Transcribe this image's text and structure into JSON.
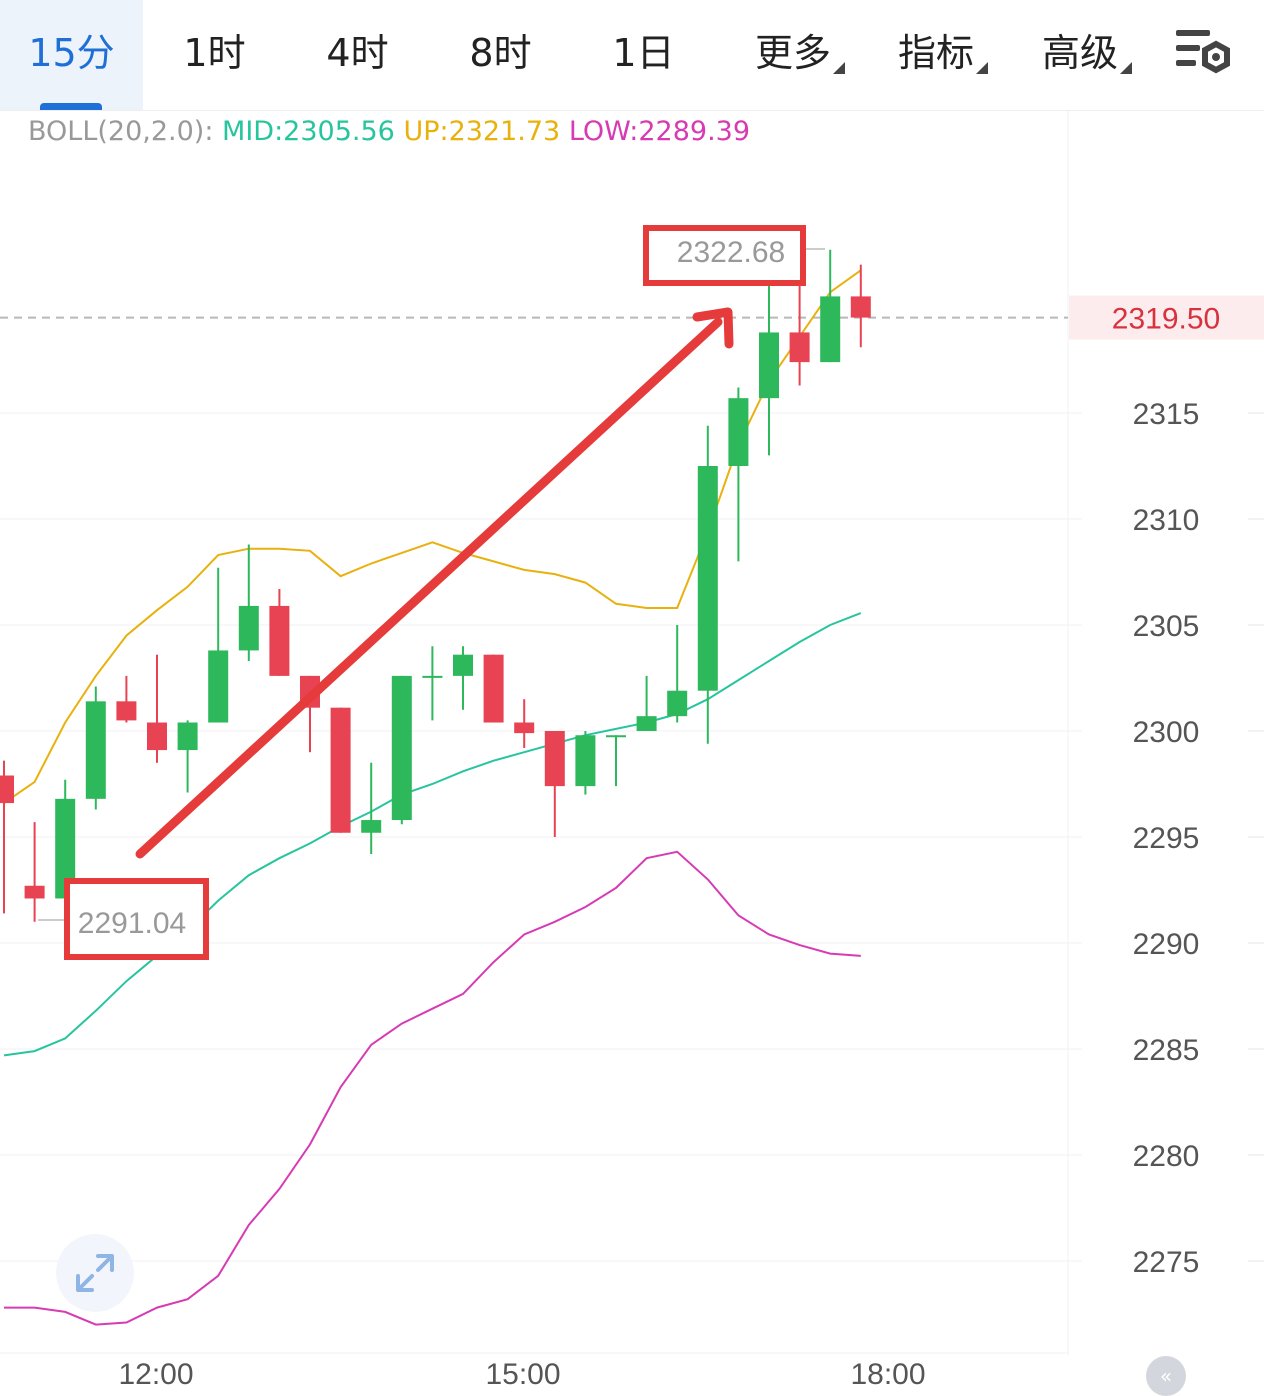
{
  "tabs": [
    {
      "label": "15分",
      "active": true,
      "dropdown": false
    },
    {
      "label": "1时",
      "active": false,
      "dropdown": false
    },
    {
      "label": "4时",
      "active": false,
      "dropdown": false
    },
    {
      "label": "8时",
      "active": false,
      "dropdown": false
    },
    {
      "label": "1日",
      "active": false,
      "dropdown": false
    },
    {
      "label": "更多",
      "active": false,
      "dropdown": true
    },
    {
      "label": "指标",
      "active": false,
      "dropdown": true
    },
    {
      "label": "高级",
      "active": false,
      "dropdown": true
    }
  ],
  "settings_icon": "chart-settings-icon",
  "legend": {
    "name": "BOLL(20,2.0):",
    "mid": "MID:2305.56",
    "up": "UP:2321.73",
    "low": "LOW:2289.39"
  },
  "colors": {
    "accent": "#1f6fd6",
    "up_candle": "#2eb85c",
    "down_candle": "#e84352",
    "mid_band": "#27c59e",
    "upper_band": "#e8b10d",
    "lower_band": "#d73bb3",
    "annotation": "#e63b3b"
  },
  "chart_data": {
    "type": "candlestick",
    "indicator": "BOLL(20,2.0)",
    "x_ticks": [
      "12:00",
      "15:00",
      "18:00"
    ],
    "y_ticks": [
      2315,
      2310,
      2305,
      2300,
      2295,
      2290,
      2285,
      2280,
      2275
    ],
    "ylim": [
      2272.5,
      2326
    ],
    "current_price": 2319.5,
    "current_price_label": "2319.50",
    "annotations": {
      "high_label": "2322.68",
      "low_label": "2291.04",
      "arrow": "up"
    },
    "candles": [
      {
        "o": 2297.9,
        "h": 2298.6,
        "l": 2291.4,
        "c": 2296.6
      },
      {
        "o": 2292.7,
        "h": 2295.7,
        "l": 2291.0,
        "c": 2292.1
      },
      {
        "o": 2292.1,
        "h": 2297.7,
        "l": 2292.1,
        "c": 2296.8
      },
      {
        "o": 2296.8,
        "h": 2302.1,
        "l": 2296.3,
        "c": 2301.4
      },
      {
        "o": 2301.4,
        "h": 2302.6,
        "l": 2300.4,
        "c": 2300.5
      },
      {
        "o": 2300.4,
        "h": 2303.6,
        "l": 2298.5,
        "c": 2299.1
      },
      {
        "o": 2299.1,
        "h": 2300.5,
        "l": 2297.1,
        "c": 2300.4
      },
      {
        "o": 2300.4,
        "h": 2307.7,
        "l": 2300.4,
        "c": 2303.8
      },
      {
        "o": 2303.8,
        "h": 2308.8,
        "l": 2303.3,
        "c": 2305.9
      },
      {
        "o": 2305.9,
        "h": 2306.7,
        "l": 2302.6,
        "c": 2302.6
      },
      {
        "o": 2302.6,
        "h": 2302.6,
        "l": 2299.0,
        "c": 2301.1
      },
      {
        "o": 2301.1,
        "h": 2301.1,
        "l": 2295.2,
        "c": 2295.2
      },
      {
        "o": 2295.2,
        "h": 2298.5,
        "l": 2294.2,
        "c": 2295.8
      },
      {
        "o": 2295.8,
        "h": 2302.6,
        "l": 2295.6,
        "c": 2302.6
      },
      {
        "o": 2302.6,
        "h": 2304.0,
        "l": 2300.5,
        "c": 2302.6
      },
      {
        "o": 2302.6,
        "h": 2304.0,
        "l": 2301.0,
        "c": 2303.6
      },
      {
        "o": 2303.6,
        "h": 2303.6,
        "l": 2300.4,
        "c": 2300.4
      },
      {
        "o": 2300.4,
        "h": 2301.5,
        "l": 2299.2,
        "c": 2299.9
      },
      {
        "o": 2300.0,
        "h": 2300.0,
        "l": 2295.0,
        "c": 2297.4
      },
      {
        "o": 2297.4,
        "h": 2300.0,
        "l": 2297.0,
        "c": 2299.8
      },
      {
        "o": 2299.8,
        "h": 2299.8,
        "l": 2297.4,
        "c": 2299.8
      },
      {
        "o": 2300.0,
        "h": 2302.6,
        "l": 2300.0,
        "c": 2300.7
      },
      {
        "o": 2300.7,
        "h": 2305.0,
        "l": 2300.4,
        "c": 2301.9
      },
      {
        "o": 2301.9,
        "h": 2314.4,
        "l": 2299.4,
        "c": 2312.5
      },
      {
        "o": 2312.5,
        "h": 2316.2,
        "l": 2308.0,
        "c": 2315.7
      },
      {
        "o": 2315.7,
        "h": 2321.0,
        "l": 2313.0,
        "c": 2318.8
      },
      {
        "o": 2318.8,
        "h": 2321.6,
        "l": 2316.3,
        "c": 2317.4
      },
      {
        "o": 2317.4,
        "h": 2322.7,
        "l": 2317.4,
        "c": 2320.5
      },
      {
        "o": 2320.5,
        "h": 2322.0,
        "l": 2318.1,
        "c": 2319.5
      }
    ],
    "boll_up": [
      2296.6,
      2297.6,
      2300.4,
      2302.6,
      2304.5,
      2305.7,
      2306.8,
      2308.3,
      2308.6,
      2308.6,
      2308.5,
      2307.3,
      2307.9,
      2308.4,
      2308.9,
      2308.4,
      2308.0,
      2307.6,
      2307.4,
      2307.0,
      2306.0,
      2305.8,
      2305.8,
      2309.4,
      2313.5,
      2316.5,
      2318.6,
      2320.7,
      2321.73
    ],
    "boll_mid": [
      2284.7,
      2284.9,
      2285.5,
      2286.8,
      2288.2,
      2289.4,
      2290.6,
      2292.0,
      2293.2,
      2294.0,
      2294.7,
      2295.5,
      2296.2,
      2297.0,
      2297.5,
      2298.1,
      2298.6,
      2299.0,
      2299.4,
      2299.8,
      2300.1,
      2300.4,
      2300.8,
      2301.5,
      2302.4,
      2303.3,
      2304.2,
      2305.0,
      2305.56
    ],
    "boll_low": [
      2272.8,
      2272.8,
      2272.6,
      2272.0,
      2272.1,
      2272.8,
      2273.2,
      2274.3,
      2276.7,
      2278.4,
      2280.5,
      2283.2,
      2285.2,
      2286.2,
      2286.9,
      2287.6,
      2289.1,
      2290.4,
      2291.0,
      2291.7,
      2292.6,
      2294.0,
      2294.3,
      2293.0,
      2291.3,
      2290.4,
      2289.9,
      2289.5,
      2289.39
    ]
  }
}
